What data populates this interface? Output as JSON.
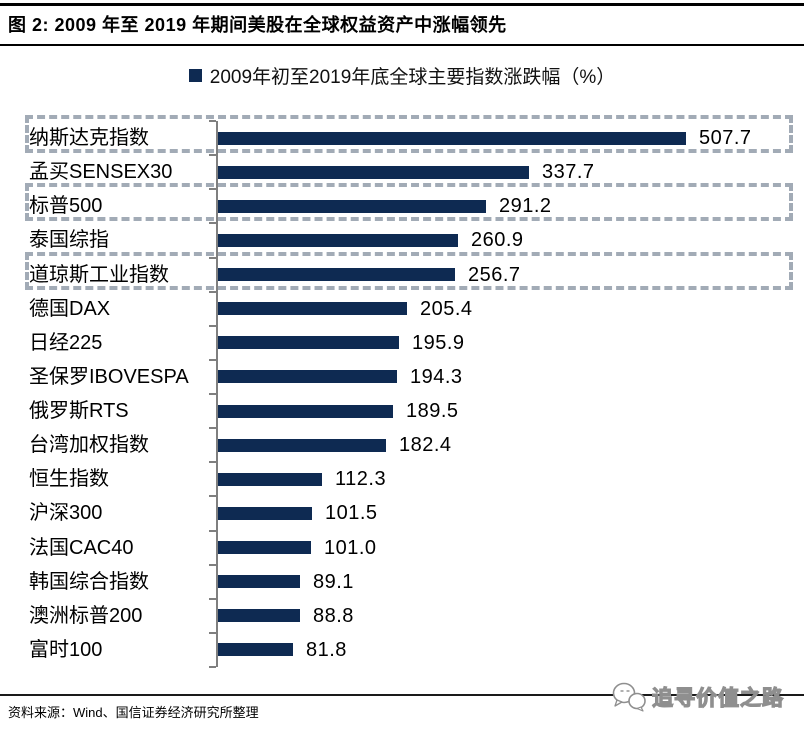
{
  "header": {
    "title": "图 2: 2009 年至 2019 年期间美股在全球权益资产中涨幅领先"
  },
  "chart": {
    "legend_label": "2009年初至2019年底全球主要指数涨跌幅（%）"
  },
  "chart_data": {
    "type": "bar",
    "orientation": "horizontal",
    "title": "2009年初至2019年底全球主要指数涨跌幅（%）",
    "categories": [
      "纳斯达克指数",
      "孟买SENSEX30",
      "标普500",
      "泰国综指",
      "道琼斯工业指数",
      "德国DAX",
      "日经225",
      "圣保罗IBOVESPA",
      "俄罗斯RTS",
      "台湾加权指数",
      "恒生指数",
      "沪深300",
      "法国CAC40",
      "韩国综合指数",
      "澳洲标普200",
      "富时100"
    ],
    "values": [
      507.7,
      337.7,
      291.2,
      260.9,
      256.7,
      205.4,
      195.9,
      194.3,
      189.5,
      182.4,
      112.3,
      101.5,
      101.0,
      89.1,
      88.8,
      81.8
    ],
    "value_labels_shown": true,
    "highlighted_categories": [
      "纳斯达克指数",
      "标普500",
      "道琼斯工业指数"
    ],
    "highlight_style": "dashed-box",
    "xlim": [
      0,
      550
    ],
    "grid": false,
    "legend_position": "top-center",
    "colors": {
      "bar": "#0e2a52",
      "legend_swatch": "#0e2a52",
      "highlight_box": "#a2abb6",
      "axis": "#7f7f7f",
      "text": "#000000"
    }
  },
  "footer": {
    "source": "资料来源：Wind、国信证券经济研究所整理"
  },
  "watermark": {
    "label": "追寻价值之路",
    "logo": "chat-bubbles-logo"
  }
}
